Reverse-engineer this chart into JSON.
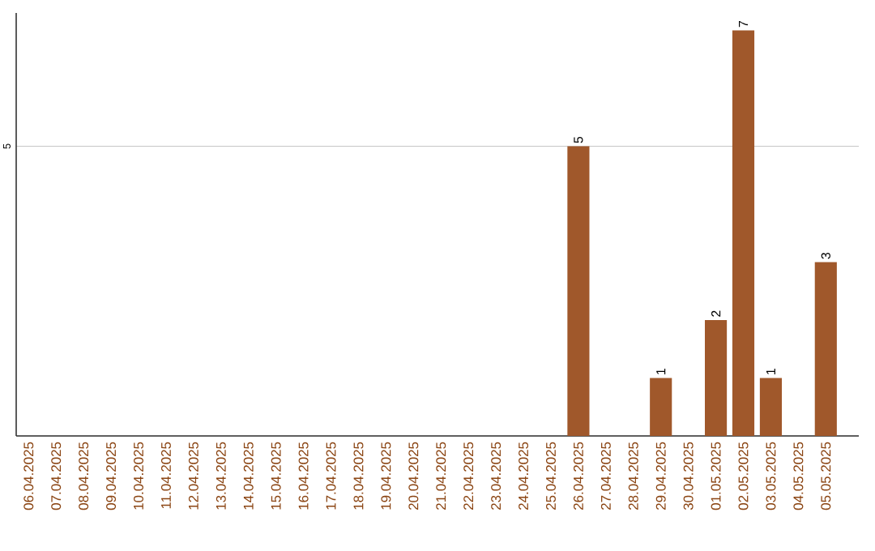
{
  "chart_data": {
    "type": "bar",
    "categories": [
      "06.04.2025",
      "07.04.2025",
      "08.04.2025",
      "09.04.2025",
      "10.04.2025",
      "11.04.2025",
      "12.04.2025",
      "13.04.2025",
      "14.04.2025",
      "15.04.2025",
      "16.04.2025",
      "17.04.2025",
      "18.04.2025",
      "19.04.2025",
      "20.04.2025",
      "21.04.2025",
      "22.04.2025",
      "23.04.2025",
      "24.04.2025",
      "25.04.2025",
      "26.04.2025",
      "27.04.2025",
      "28.04.2025",
      "29.04.2025",
      "30.04.2025",
      "01.05.2025",
      "02.05.2025",
      "03.05.2025",
      "04.05.2025",
      "05.05.2025"
    ],
    "values": [
      null,
      null,
      null,
      null,
      null,
      null,
      null,
      null,
      null,
      null,
      null,
      null,
      null,
      null,
      null,
      null,
      null,
      null,
      null,
      null,
      5,
      null,
      null,
      1,
      null,
      2,
      7,
      1,
      null,
      3
    ],
    "value_labels": [
      null,
      null,
      null,
      null,
      null,
      null,
      null,
      null,
      null,
      null,
      null,
      null,
      null,
      null,
      null,
      null,
      null,
      null,
      null,
      null,
      "5",
      null,
      null,
      "1",
      null,
      "2",
      "7",
      "1",
      null,
      "3"
    ],
    "color": "#a0582b",
    "ylim": [
      0,
      7.3
    ],
    "yticks": [
      {
        "value": 0,
        "label": null
      },
      5
    ],
    "grid": "y"
  }
}
